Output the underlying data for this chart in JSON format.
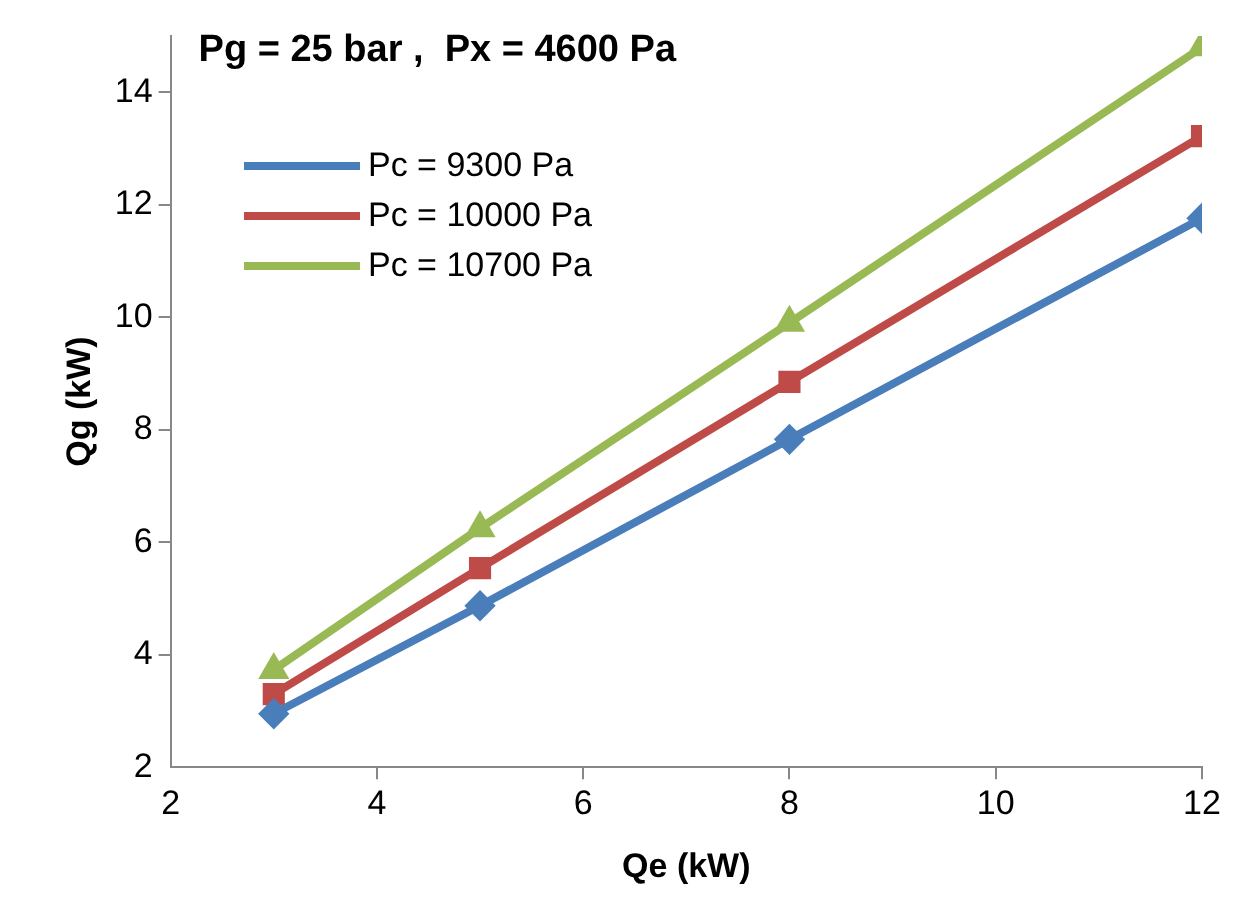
{
  "chart_data": {
    "type": "line",
    "title": "Pg = 25 bar ,  Px = 4600 Pa",
    "xlabel": "Qe (kW)",
    "ylabel": "Qg (kW)",
    "x": [
      3,
      5,
      8,
      12
    ],
    "series": [
      {
        "name": "Pc = 9300 Pa",
        "color": "#4a7ebb",
        "marker": "diamond",
        "values": [
          2.95,
          4.87,
          7.83,
          11.76
        ]
      },
      {
        "name": "Pc = 10000 Pa",
        "color": "#be4b48",
        "marker": "square",
        "values": [
          3.3,
          5.54,
          8.85,
          13.22
        ]
      },
      {
        "name": "Pc = 10700 Pa",
        "color": "#98b954",
        "marker": "triangle",
        "values": [
          3.73,
          6.25,
          9.9,
          14.8
        ]
      }
    ],
    "xlim": [
      2,
      12
    ],
    "xticks": [
      2,
      4,
      6,
      8,
      10,
      12
    ],
    "ylim": [
      2,
      15
    ],
    "yticks": [
      2,
      4,
      6,
      8,
      10,
      12,
      14
    ],
    "grid": false,
    "legend": "top left",
    "line_style": "solid"
  }
}
